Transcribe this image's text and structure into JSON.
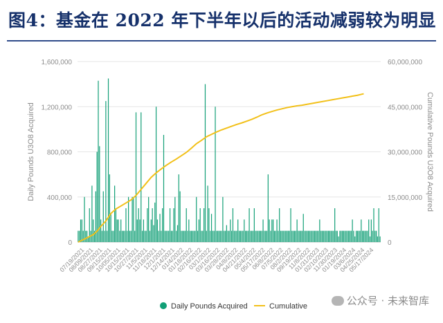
{
  "page": {
    "title": "图4：基金在 2022 年下半年以后的活动减弱较为明显",
    "watermark": "公众号 · 未来智库"
  },
  "colors": {
    "bars": "#119f76",
    "cumulative": "#f2c018",
    "title": "#16316b",
    "axis_text": "#8c8c8c",
    "grid": "#e6e6e6"
  },
  "chart_data": {
    "type": "bar",
    "ylabel": "Daily Pounds U3O8 Acquired",
    "y2label": "Cumulative Pounds U3O8 Acquired",
    "ylim": [
      0,
      1600000
    ],
    "y2lim": [
      0,
      60000000
    ],
    "yticks": [
      "0",
      "400,000",
      "800,000",
      "1,200,000",
      "1,600,000"
    ],
    "y2ticks": [
      "0",
      "15,000,000",
      "30,000,000",
      "45,000,000",
      "60,000,000"
    ],
    "grid": true,
    "legend_position": "bottom",
    "x_tick_labels": [
      "07/19/2021",
      "08/09/2021",
      "08/27/2021",
      "09/15/2021",
      "10/05/2021",
      "10/15/2021",
      "10/27/2021",
      "11/5/2021",
      "11/18/2021",
      "12/1/2021",
      "12/14/2021",
      "01/4/2022",
      "01/18/2022",
      "02/16/2022",
      "03/1/2022",
      "03/16/2022",
      "03/28/2022",
      "04/8/2022",
      "04/21/2022",
      "05/4/2022",
      "05/17/2022",
      "06/8/2022",
      "07/5/2022",
      "08/2/2022",
      "09/19/2022",
      "11/8/2022",
      "01/31/2023",
      "02/10/2023",
      "11/30/2023",
      "01/19/2024",
      "03/6/2024",
      "04/25/2024",
      "05/17/2024"
    ],
    "series": [
      {
        "name": "Daily Pounds Acquired",
        "type": "bar",
        "values": [
          100000,
          100000,
          200000,
          200000,
          100000,
          400000,
          100000,
          100000,
          50000,
          300000,
          100000,
          500000,
          200000,
          100000,
          450000,
          800000,
          1430000,
          850000,
          200000,
          100000,
          450000,
          100000,
          1250000,
          100000,
          1450000,
          600000,
          250000,
          100000,
          100000,
          500000,
          300000,
          200000,
          200000,
          100000,
          200000,
          100000,
          100000,
          100000,
          300000,
          100000,
          400000,
          100000,
          100000,
          400000,
          400000,
          100000,
          1150000,
          200000,
          300000,
          200000,
          1150000,
          100000,
          200000,
          100000,
          100000,
          300000,
          400000,
          100000,
          200000,
          300000,
          150000,
          350000,
          1200000,
          200000,
          100000,
          250000,
          100000,
          300000,
          950000,
          100000,
          100000,
          100000,
          100000,
          300000,
          100000,
          100000,
          300000,
          400000,
          100000,
          150000,
          600000,
          450000,
          100000,
          100000,
          100000,
          100000,
          300000,
          100000,
          200000,
          100000,
          100000,
          100000,
          100000,
          100000,
          400000,
          100000,
          200000,
          300000,
          100000,
          100000,
          300000,
          1400000,
          100000,
          500000,
          300000,
          100000,
          250000,
          100000,
          100000,
          1200000,
          100000,
          100000,
          100000,
          100000,
          100000,
          400000,
          100000,
          100000,
          150000,
          100000,
          100000,
          200000,
          100000,
          300000,
          100000,
          100000,
          100000,
          200000,
          100000,
          100000,
          100000,
          100000,
          200000,
          100000,
          100000,
          100000,
          300000,
          100000,
          100000,
          100000,
          300000,
          100000,
          100000,
          100000,
          100000,
          100000,
          100000,
          200000,
          100000,
          100000,
          100000,
          600000,
          200000,
          100000,
          200000,
          200000,
          100000,
          100000,
          200000,
          100000,
          300000,
          100000,
          100000,
          100000,
          100000,
          100000,
          100000,
          100000,
          100000,
          300000,
          100000,
          100000,
          100000,
          100000,
          200000,
          100000,
          100000,
          100000,
          100000,
          250000,
          100000,
          100000,
          100000,
          100000,
          100000,
          100000,
          100000,
          100000,
          100000,
          100000,
          100000,
          100000,
          200000,
          100000,
          100000,
          100000,
          100000,
          100000,
          100000,
          100000,
          100000,
          100000,
          100000,
          100000,
          300000,
          100000,
          100000,
          50000,
          100000,
          100000,
          100000,
          100000,
          100000,
          100000,
          100000,
          100000,
          100000,
          100000,
          200000,
          100000,
          50000,
          100000,
          100000,
          100000,
          100000,
          200000,
          100000,
          100000,
          100000,
          100000,
          100000,
          200000,
          50000,
          200000,
          100000,
          300000,
          100000,
          100000,
          50000,
          300000,
          50000
        ]
      },
      {
        "name": "Cumulative",
        "type": "line",
        "axis": "right",
        "points": [
          [
            0,
            0
          ],
          [
            4,
            800000
          ],
          [
            8,
            1600000
          ],
          [
            12,
            2500000
          ],
          [
            15,
            3600000
          ],
          [
            18,
            5200000
          ],
          [
            22,
            7000000
          ],
          [
            26,
            9500000
          ],
          [
            30,
            11000000
          ],
          [
            34,
            12000000
          ],
          [
            38,
            13000000
          ],
          [
            42,
            14000000
          ],
          [
            46,
            15500000
          ],
          [
            50,
            17500000
          ],
          [
            54,
            19500000
          ],
          [
            58,
            21500000
          ],
          [
            62,
            23000000
          ],
          [
            66,
            24300000
          ],
          [
            70,
            25500000
          ],
          [
            74,
            26600000
          ],
          [
            78,
            27600000
          ],
          [
            82,
            28700000
          ],
          [
            86,
            29800000
          ],
          [
            90,
            31200000
          ],
          [
            94,
            32700000
          ],
          [
            98,
            33800000
          ],
          [
            102,
            35000000
          ],
          [
            106,
            35800000
          ],
          [
            110,
            36600000
          ],
          [
            114,
            37300000
          ],
          [
            118,
            37900000
          ],
          [
            122,
            38500000
          ],
          [
            126,
            39100000
          ],
          [
            130,
            39600000
          ],
          [
            134,
            40200000
          ],
          [
            138,
            40800000
          ],
          [
            142,
            41500000
          ],
          [
            146,
            42300000
          ],
          [
            150,
            42900000
          ],
          [
            154,
            43400000
          ],
          [
            158,
            43900000
          ],
          [
            162,
            44300000
          ],
          [
            166,
            44700000
          ],
          [
            170,
            45000000
          ],
          [
            174,
            45300000
          ],
          [
            178,
            45500000
          ],
          [
            182,
            45800000
          ],
          [
            186,
            46100000
          ],
          [
            190,
            46400000
          ],
          [
            194,
            46700000
          ],
          [
            198,
            47000000
          ],
          [
            202,
            47300000
          ],
          [
            206,
            47600000
          ],
          [
            210,
            47900000
          ],
          [
            214,
            48200000
          ],
          [
            218,
            48500000
          ],
          [
            222,
            48800000
          ],
          [
            225,
            49100000
          ],
          [
            227,
            49300000
          ]
        ]
      }
    ]
  }
}
